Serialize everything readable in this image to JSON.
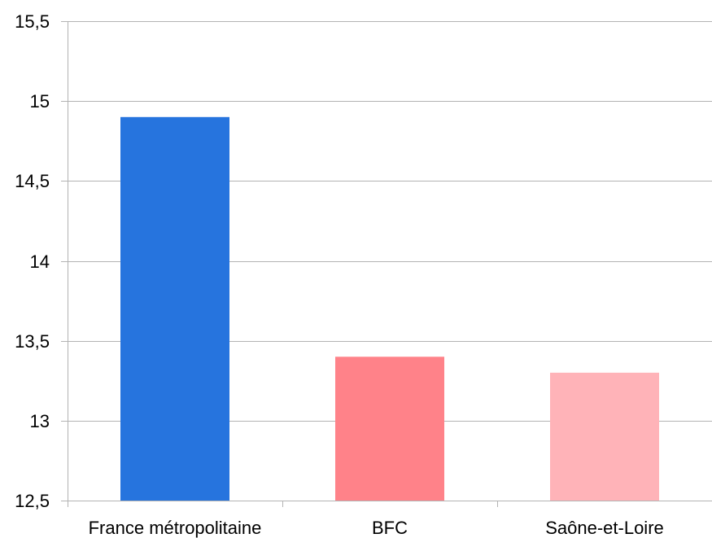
{
  "chart_data": {
    "type": "bar",
    "title": "",
    "xlabel": "",
    "ylabel": "",
    "categories": [
      "France métropolitaine",
      "BFC",
      "Saône-et-Loire"
    ],
    "values": [
      14.9,
      13.4,
      13.3
    ],
    "bar_colors": [
      "#2674de",
      "#ff8289",
      "#ffb3b8"
    ],
    "ylim": [
      12.5,
      15.5
    ],
    "y_ticks": [
      12.5,
      13,
      13.5,
      14,
      14.5,
      15,
      15.5
    ],
    "y_tick_labels": [
      "12,5",
      "13",
      "13,5",
      "14",
      "14,5",
      "15",
      "15,5"
    ],
    "grid": true,
    "legend": "none"
  }
}
